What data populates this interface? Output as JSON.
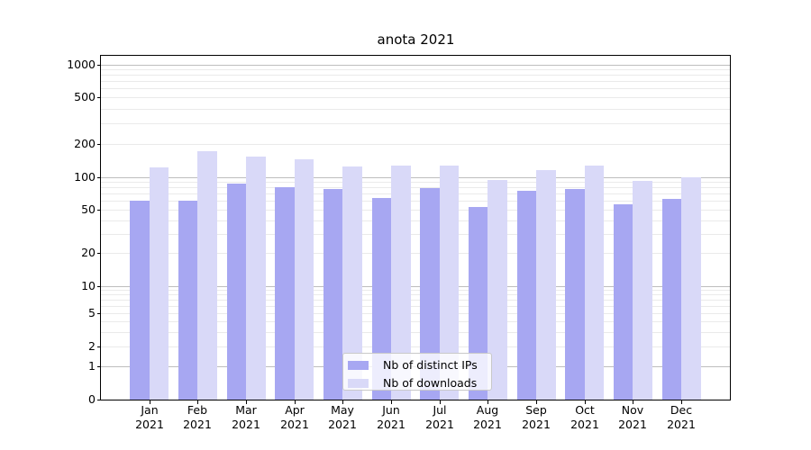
{
  "chart_data": {
    "type": "bar",
    "title": "anota 2021",
    "categories": [
      "Jan 2021",
      "Feb 2021",
      "Mar 2021",
      "Apr 2021",
      "May 2021",
      "Jun 2021",
      "Jul 2021",
      "Aug 2021",
      "Sep 2021",
      "Oct 2021",
      "Nov 2021",
      "Dec 2021"
    ],
    "series": [
      {
        "name": "Nb of distinct IPs",
        "color": "#a7a7f2",
        "values": [
          60,
          60,
          87,
          80,
          77,
          64,
          79,
          53,
          74,
          77,
          56,
          63
        ]
      },
      {
        "name": "Nb of downloads",
        "color": "#d9d9f8",
        "values": [
          122,
          173,
          152,
          144,
          125,
          127,
          127,
          93,
          115,
          128,
          92,
          100
        ]
      }
    ],
    "y_axis": {
      "scale": "symlog",
      "tick_labels": [
        "0",
        "1",
        "2",
        "5",
        "10",
        "20",
        "50",
        "100",
        "200",
        "500",
        "1000"
      ],
      "ylim": [
        0,
        1100
      ]
    },
    "x_axis": {
      "year_line": "2021"
    },
    "legend": {
      "position": "lower center",
      "entries": [
        "Nb of distinct IPs",
        "Nb of downloads"
      ]
    },
    "grid": true,
    "colors": {
      "grid_major": "#bdbdbd",
      "grid_minor": "#eaeaea",
      "axis": "#000000",
      "background": "#ffffff"
    }
  }
}
